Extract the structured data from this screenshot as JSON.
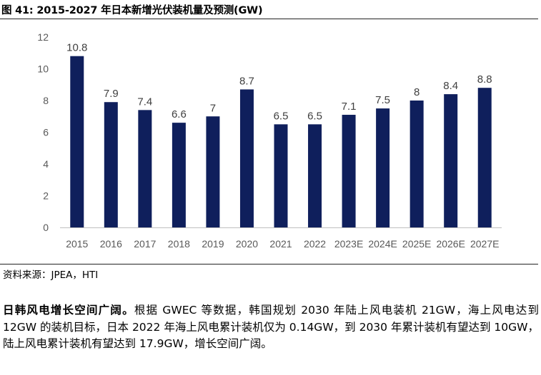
{
  "figure": {
    "title": "图 41: 2015-2027 年日本新增光伏装机量及预测(GW)"
  },
  "chart_data": {
    "type": "bar",
    "title": "图 41: 2015-2027 年日本新增光伏装机量及预测(GW)",
    "categories": [
      "2015",
      "2016",
      "2017",
      "2018",
      "2019",
      "2020",
      "2021",
      "2022",
      "2023E",
      "2024E",
      "2025E",
      "2026E",
      "2027E"
    ],
    "values": [
      10.8,
      7.9,
      7.4,
      6.6,
      7,
      8.7,
      6.5,
      6.5,
      7.1,
      7.5,
      8,
      8.4,
      8.8
    ],
    "value_labels": [
      "10.8",
      "7.9",
      "7.4",
      "6.6",
      "7",
      "8.7",
      "6.5",
      "6.5",
      "7.1",
      "7.5",
      "8",
      "8.4",
      "8.8"
    ],
    "yticks": [
      "0",
      "2",
      "4",
      "6",
      "8",
      "10",
      "12"
    ],
    "ylim": [
      0,
      12
    ],
    "xlabel": "",
    "ylabel": "",
    "grid": false,
    "bar_color": "#0f1f5c"
  },
  "source": "资料来源：JPEA，HTI",
  "paragraph": {
    "lead": "日韩风电增长空间广阔。",
    "body": "根据 GWEC 等数据，韩国规划 2030 年陆上风电装机 21GW，海上风电达到 12GW 的装机目标，日本 2022 年海上风电累计装机仅为 0.14GW，到 2030 年累计装机有望达到 10GW，陆上风电累计装机有望达到 17.9GW，增长空间广阔。"
  }
}
